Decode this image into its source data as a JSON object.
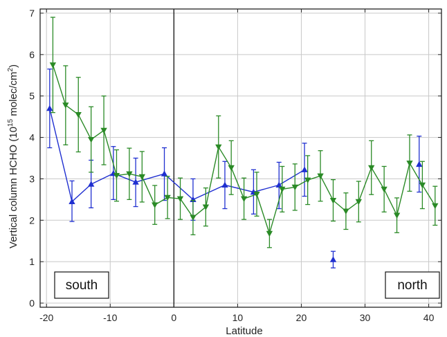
{
  "chart_data": {
    "type": "line",
    "title": "",
    "xlabel": "Latitude",
    "ylabel_main": "Vertical column HCHO  (10",
    "ylabel_exp": "15",
    "ylabel_unit_a": " molec/cm",
    "ylabel_unit_exp": "2",
    "ylabel_close": ")",
    "xlim": [
      -21,
      42
    ],
    "ylim": [
      -0.1,
      7.1
    ],
    "xticks": [
      -20,
      -10,
      0,
      10,
      20,
      30,
      40
    ],
    "xtick_labels": [
      "-20",
      "-10",
      "0",
      "10",
      "20",
      "30",
      "40"
    ],
    "yticks": [
      0,
      1,
      2,
      3,
      4,
      5,
      6,
      7
    ],
    "ytick_labels": [
      "0",
      "1",
      "2",
      "3",
      "4",
      "5",
      "6",
      "7"
    ],
    "grid": true,
    "vertical_reference_line_x": 0,
    "annotations": [
      {
        "text": "south",
        "position": "bottom-left"
      },
      {
        "text": "north",
        "position": "bottom-right"
      }
    ],
    "series": [
      {
        "color": "#1f2fd0",
        "marker": "triangle-up",
        "segments": [
          [
            {
              "x": -19.5,
              "y": 4.7,
              "lo": 3.75,
              "hi": 5.65
            },
            {
              "x": -16.0,
              "y": 2.45,
              "lo": 1.97,
              "hi": 2.95
            },
            {
              "x": -13.0,
              "y": 2.87,
              "lo": 2.3,
              "hi": 3.45
            },
            {
              "x": -9.5,
              "y": 3.13,
              "lo": 2.5,
              "hi": 3.78
            },
            {
              "x": -6.0,
              "y": 2.92,
              "lo": 2.33,
              "hi": 3.5
            },
            {
              "x": -1.5,
              "y": 3.12,
              "lo": 2.48,
              "hi": 3.75
            },
            {
              "x": 3.0,
              "y": 2.5,
              "lo": 2.0,
              "hi": 3.0
            },
            {
              "x": 8.0,
              "y": 2.85,
              "lo": 2.28,
              "hi": 3.42
            },
            {
              "x": 12.5,
              "y": 2.68,
              "lo": 2.15,
              "hi": 3.22
            },
            {
              "x": 16.5,
              "y": 2.85,
              "lo": 2.28,
              "hi": 3.4
            },
            {
              "x": 20.5,
              "y": 3.22,
              "lo": 2.58,
              "hi": 3.86
            }
          ],
          [
            {
              "x": 25.0,
              "y": 1.05,
              "lo": 0.85,
              "hi": 1.25
            }
          ],
          [
            {
              "x": 38.5,
              "y": 3.35,
              "lo": 2.68,
              "hi": 4.03
            }
          ]
        ]
      },
      {
        "color": "#2a8a26",
        "marker": "triangle-down",
        "segments": [
          [
            {
              "x": -19.0,
              "y": 5.75,
              "lo": 4.6,
              "hi": 6.9
            },
            {
              "x": -17.0,
              "y": 4.78,
              "lo": 3.82,
              "hi": 5.73
            },
            {
              "x": -15.0,
              "y": 4.55,
              "lo": 3.65,
              "hi": 5.45
            },
            {
              "x": -13.0,
              "y": 3.95,
              "lo": 3.16,
              "hi": 4.74
            },
            {
              "x": -11.0,
              "y": 4.17,
              "lo": 3.34,
              "hi": 5.0
            },
            {
              "x": -9.0,
              "y": 3.08,
              "lo": 2.46,
              "hi": 3.7
            },
            {
              "x": -7.0,
              "y": 3.12,
              "lo": 2.5,
              "hi": 3.74
            },
            {
              "x": -5.0,
              "y": 3.05,
              "lo": 2.44,
              "hi": 3.66
            },
            {
              "x": -3.0,
              "y": 2.37,
              "lo": 1.9,
              "hi": 2.84
            },
            {
              "x": -1.0,
              "y": 2.55,
              "lo": 2.04,
              "hi": 3.06
            },
            {
              "x": 1.0,
              "y": 2.52,
              "lo": 2.02,
              "hi": 3.02
            },
            {
              "x": 3.0,
              "y": 2.07,
              "lo": 1.65,
              "hi": 2.48
            },
            {
              "x": 5.0,
              "y": 2.32,
              "lo": 1.86,
              "hi": 2.78
            },
            {
              "x": 7.0,
              "y": 3.77,
              "lo": 3.02,
              "hi": 4.52
            },
            {
              "x": 9.0,
              "y": 3.27,
              "lo": 2.62,
              "hi": 3.92
            },
            {
              "x": 11.0,
              "y": 2.52,
              "lo": 2.02,
              "hi": 3.02
            },
            {
              "x": 13.0,
              "y": 2.63,
              "lo": 2.1,
              "hi": 3.16
            },
            {
              "x": 15.0,
              "y": 1.68,
              "lo": 1.34,
              "hi": 2.02
            },
            {
              "x": 17.0,
              "y": 2.75,
              "lo": 2.2,
              "hi": 3.3
            },
            {
              "x": 19.0,
              "y": 2.8,
              "lo": 2.24,
              "hi": 3.36
            },
            {
              "x": 21.0,
              "y": 2.97,
              "lo": 2.38,
              "hi": 3.56
            },
            {
              "x": 23.0,
              "y": 3.07,
              "lo": 2.46,
              "hi": 3.68
            },
            {
              "x": 25.0,
              "y": 2.48,
              "lo": 1.98,
              "hi": 2.98
            },
            {
              "x": 27.0,
              "y": 2.22,
              "lo": 1.78,
              "hi": 2.66
            },
            {
              "x": 29.0,
              "y": 2.45,
              "lo": 1.96,
              "hi": 2.94
            },
            {
              "x": 31.0,
              "y": 3.27,
              "lo": 2.62,
              "hi": 3.92
            },
            {
              "x": 33.0,
              "y": 2.75,
              "lo": 2.2,
              "hi": 3.3
            },
            {
              "x": 35.0,
              "y": 2.12,
              "lo": 1.7,
              "hi": 2.54
            },
            {
              "x": 37.0,
              "y": 3.38,
              "lo": 2.7,
              "hi": 4.06
            },
            {
              "x": 39.0,
              "y": 2.85,
              "lo": 2.28,
              "hi": 3.42
            },
            {
              "x": 41.0,
              "y": 2.35,
              "lo": 1.88,
              "hi": 2.82
            }
          ]
        ]
      }
    ]
  }
}
